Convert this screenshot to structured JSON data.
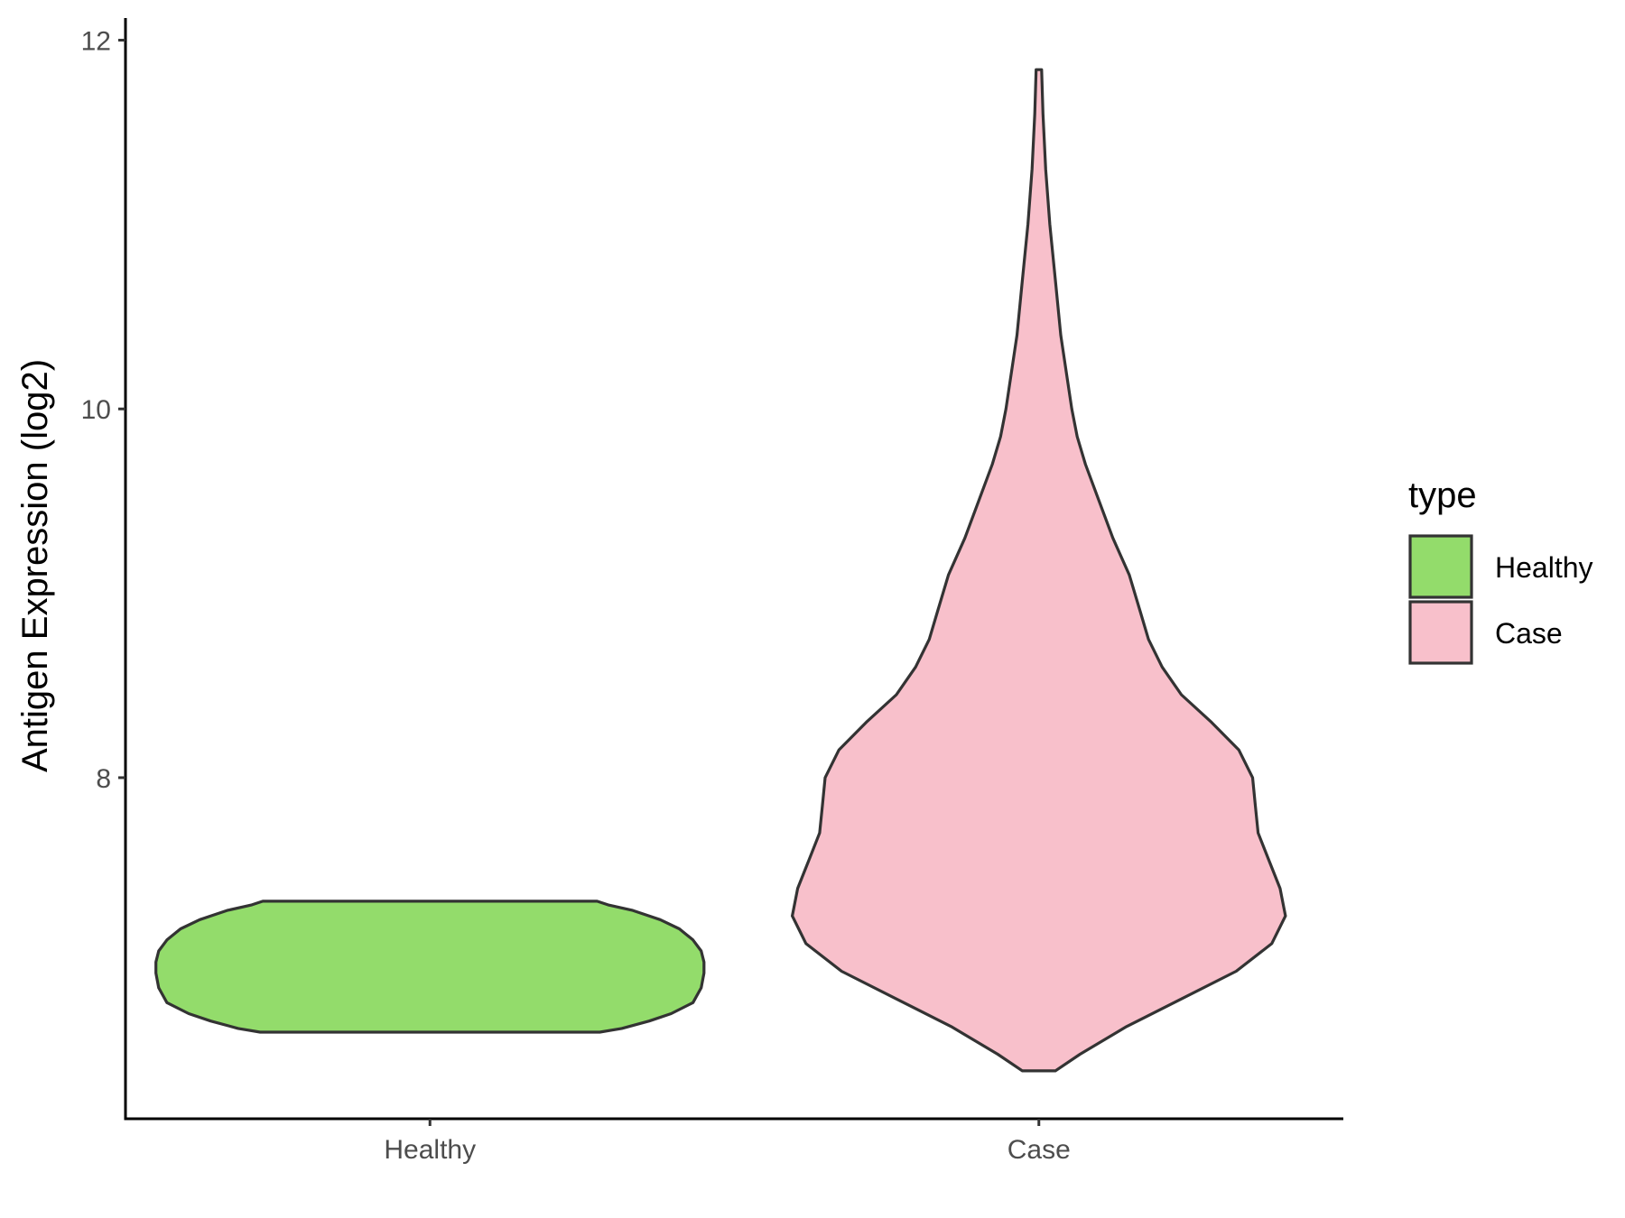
{
  "chart_data": {
    "type": "violin",
    "title": "",
    "xlabel": "",
    "ylabel": "Antigen Expression (log2)",
    "categories": [
      "Healthy",
      "Case"
    ],
    "ylim": [
      6.15,
      12.12
    ],
    "yticks": [
      8,
      10,
      12
    ],
    "grid": false,
    "legend": {
      "title": "type",
      "position": "right",
      "entries": [
        {
          "label": "Healthy",
          "color": "#93dc6b"
        },
        {
          "label": "Case",
          "color": "#f8c0cb"
        }
      ]
    },
    "series": [
      {
        "category": "Healthy",
        "color": "#93dc6b",
        "min": 6.62,
        "max": 7.33,
        "density": [
          [
            6.62,
            0.62
          ],
          [
            6.64,
            0.7
          ],
          [
            6.68,
            0.8
          ],
          [
            6.72,
            0.88
          ],
          [
            6.78,
            0.96
          ],
          [
            6.86,
            0.99
          ],
          [
            6.94,
            1.0
          ],
          [
            7.0,
            1.0
          ],
          [
            7.06,
            0.99
          ],
          [
            7.12,
            0.96
          ],
          [
            7.18,
            0.91
          ],
          [
            7.23,
            0.84
          ],
          [
            7.28,
            0.74
          ],
          [
            7.31,
            0.65
          ],
          [
            7.33,
            0.61
          ]
        ]
      },
      {
        "category": "Case",
        "color": "#f8c0cb",
        "min": 6.41,
        "max": 11.84,
        "density": [
          [
            6.41,
            0.06
          ],
          [
            6.5,
            0.15
          ],
          [
            6.65,
            0.32
          ],
          [
            6.8,
            0.52
          ],
          [
            6.95,
            0.72
          ],
          [
            7.1,
            0.85
          ],
          [
            7.25,
            0.9
          ],
          [
            7.4,
            0.88
          ],
          [
            7.55,
            0.84
          ],
          [
            7.7,
            0.8
          ],
          [
            7.85,
            0.79
          ],
          [
            8.0,
            0.78
          ],
          [
            8.15,
            0.73
          ],
          [
            8.3,
            0.63
          ],
          [
            8.45,
            0.52
          ],
          [
            8.6,
            0.45
          ],
          [
            8.75,
            0.4
          ],
          [
            8.9,
            0.37
          ],
          [
            9.1,
            0.33
          ],
          [
            9.3,
            0.27
          ],
          [
            9.5,
            0.22
          ],
          [
            9.7,
            0.17
          ],
          [
            9.85,
            0.14
          ],
          [
            10.0,
            0.12
          ],
          [
            10.2,
            0.1
          ],
          [
            10.4,
            0.08
          ],
          [
            10.7,
            0.06
          ],
          [
            11.0,
            0.04
          ],
          [
            11.3,
            0.025
          ],
          [
            11.6,
            0.015
          ],
          [
            11.84,
            0.01
          ]
        ]
      }
    ]
  }
}
